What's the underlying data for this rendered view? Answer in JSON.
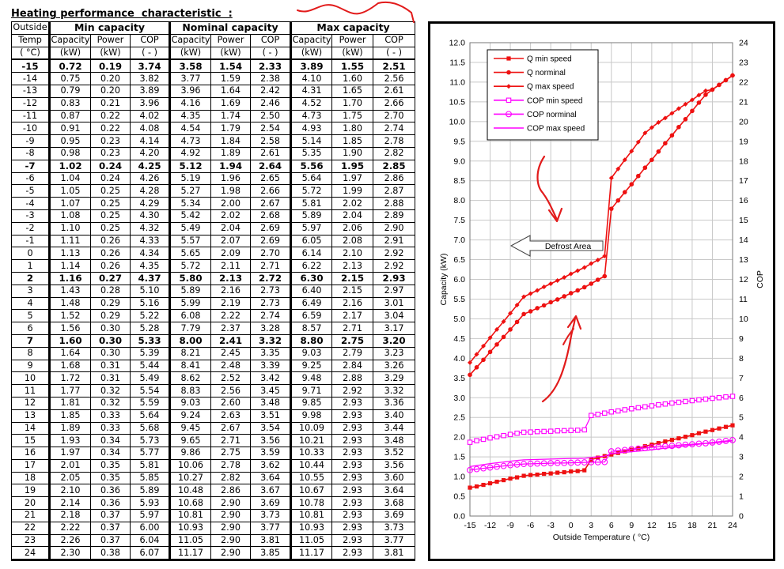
{
  "title": "Heating performance  characteristic  :",
  "table": {
    "corner": [
      "Outside",
      "Temp",
      "( °C)"
    ],
    "groups": [
      "Min capacity",
      "Nominal capacity",
      "Max capacity"
    ],
    "subheaders": [
      "Capacity",
      "Power",
      "COP"
    ],
    "units": [
      "(kW)",
      "(kW)",
      "( - )"
    ],
    "bold_temps": [
      "-15",
      "-7",
      "2",
      "7"
    ],
    "rows": [
      [
        "-15",
        "0.72",
        "0.19",
        "3.74",
        "3.58",
        "1.54",
        "2.33",
        "3.89",
        "1.55",
        "2.51"
      ],
      [
        "-14",
        "0.75",
        "0.20",
        "3.82",
        "3.77",
        "1.59",
        "2.38",
        "4.10",
        "1.60",
        "2.56"
      ],
      [
        "-13",
        "0.79",
        "0.20",
        "3.89",
        "3.96",
        "1.64",
        "2.42",
        "4.31",
        "1.65",
        "2.61"
      ],
      [
        "-12",
        "0.83",
        "0.21",
        "3.96",
        "4.16",
        "1.69",
        "2.46",
        "4.52",
        "1.70",
        "2.66"
      ],
      [
        "-11",
        "0.87",
        "0.22",
        "4.02",
        "4.35",
        "1.74",
        "2.50",
        "4.73",
        "1.75",
        "2.70"
      ],
      [
        "-10",
        "0.91",
        "0.22",
        "4.08",
        "4.54",
        "1.79",
        "2.54",
        "4.93",
        "1.80",
        "2.74"
      ],
      [
        "-9",
        "0.95",
        "0.23",
        "4.14",
        "4.73",
        "1.84",
        "2.58",
        "5.14",
        "1.85",
        "2.78"
      ],
      [
        "-8",
        "0.98",
        "0.23",
        "4.20",
        "4.92",
        "1.89",
        "2.61",
        "5.35",
        "1.90",
        "2.82"
      ],
      [
        "-7",
        "1.02",
        "0.24",
        "4.25",
        "5.12",
        "1.94",
        "2.64",
        "5.56",
        "1.95",
        "2.85"
      ],
      [
        "-6",
        "1.04",
        "0.24",
        "4.26",
        "5.19",
        "1.96",
        "2.65",
        "5.64",
        "1.97",
        "2.86"
      ],
      [
        "-5",
        "1.05",
        "0.25",
        "4.28",
        "5.27",
        "1.98",
        "2.66",
        "5.72",
        "1.99",
        "2.87"
      ],
      [
        "-4",
        "1.07",
        "0.25",
        "4.29",
        "5.34",
        "2.00",
        "2.67",
        "5.81",
        "2.02",
        "2.88"
      ],
      [
        "-3",
        "1.08",
        "0.25",
        "4.30",
        "5.42",
        "2.02",
        "2.68",
        "5.89",
        "2.04",
        "2.89"
      ],
      [
        "-2",
        "1.10",
        "0.25",
        "4.32",
        "5.49",
        "2.04",
        "2.69",
        "5.97",
        "2.06",
        "2.90"
      ],
      [
        "-1",
        "1.11",
        "0.26",
        "4.33",
        "5.57",
        "2.07",
        "2.69",
        "6.05",
        "2.08",
        "2.91"
      ],
      [
        "0",
        "1.13",
        "0.26",
        "4.34",
        "5.65",
        "2.09",
        "2.70",
        "6.14",
        "2.10",
        "2.92"
      ],
      [
        "1",
        "1.14",
        "0.26",
        "4.35",
        "5.72",
        "2.11",
        "2.71",
        "6.22",
        "2.13",
        "2.92"
      ],
      [
        "2",
        "1.16",
        "0.27",
        "4.37",
        "5.80",
        "2.13",
        "2.72",
        "6.30",
        "2.15",
        "2.93"
      ],
      [
        "3",
        "1.43",
        "0.28",
        "5.10",
        "5.89",
        "2.16",
        "2.73",
        "6.40",
        "2.15",
        "2.97"
      ],
      [
        "4",
        "1.48",
        "0.29",
        "5.16",
        "5.99",
        "2.19",
        "2.73",
        "6.49",
        "2.16",
        "3.01"
      ],
      [
        "5",
        "1.52",
        "0.29",
        "5.22",
        "6.08",
        "2.22",
        "2.74",
        "6.59",
        "2.17",
        "3.04"
      ],
      [
        "6",
        "1.56",
        "0.30",
        "5.28",
        "7.79",
        "2.37",
        "3.28",
        "8.57",
        "2.71",
        "3.17"
      ],
      [
        "7",
        "1.60",
        "0.30",
        "5.33",
        "8.00",
        "2.41",
        "3.32",
        "8.80",
        "2.75",
        "3.20"
      ],
      [
        "8",
        "1.64",
        "0.30",
        "5.39",
        "8.21",
        "2.45",
        "3.35",
        "9.03",
        "2.79",
        "3.23"
      ],
      [
        "9",
        "1.68",
        "0.31",
        "5.44",
        "8.41",
        "2.48",
        "3.39",
        "9.25",
        "2.84",
        "3.26"
      ],
      [
        "10",
        "1.72",
        "0.31",
        "5.49",
        "8.62",
        "2.52",
        "3.42",
        "9.48",
        "2.88",
        "3.29"
      ],
      [
        "11",
        "1.77",
        "0.32",
        "5.54",
        "8.83",
        "2.56",
        "3.45",
        "9.71",
        "2.92",
        "3.32"
      ],
      [
        "12",
        "1.81",
        "0.32",
        "5.59",
        "9.03",
        "2.60",
        "3.48",
        "9.85",
        "2.93",
        "3.36"
      ],
      [
        "13",
        "1.85",
        "0.33",
        "5.64",
        "9.24",
        "2.63",
        "3.51",
        "9.98",
        "2.93",
        "3.40"
      ],
      [
        "14",
        "1.89",
        "0.33",
        "5.68",
        "9.45",
        "2.67",
        "3.54",
        "10.09",
        "2.93",
        "3.44"
      ],
      [
        "15",
        "1.93",
        "0.34",
        "5.73",
        "9.65",
        "2.71",
        "3.56",
        "10.21",
        "2.93",
        "3.48"
      ],
      [
        "16",
        "1.97",
        "0.34",
        "5.77",
        "9.86",
        "2.75",
        "3.59",
        "10.33",
        "2.93",
        "3.52"
      ],
      [
        "17",
        "2.01",
        "0.35",
        "5.81",
        "10.06",
        "2.78",
        "3.62",
        "10.44",
        "2.93",
        "3.56"
      ],
      [
        "18",
        "2.05",
        "0.35",
        "5.85",
        "10.27",
        "2.82",
        "3.64",
        "10.55",
        "2.93",
        "3.60"
      ],
      [
        "19",
        "2.10",
        "0.36",
        "5.89",
        "10.48",
        "2.86",
        "3.67",
        "10.67",
        "2.93",
        "3.64"
      ],
      [
        "20",
        "2.14",
        "0.36",
        "5.93",
        "10.68",
        "2.90",
        "3.69",
        "10.78",
        "2.93",
        "3.68"
      ],
      [
        "21",
        "2.18",
        "0.37",
        "5.97",
        "10.81",
        "2.90",
        "3.73",
        "10.81",
        "2.93",
        "3.69"
      ],
      [
        "22",
        "2.22",
        "0.37",
        "6.00",
        "10.93",
        "2.90",
        "3.77",
        "10.93",
        "2.93",
        "3.73"
      ],
      [
        "23",
        "2.26",
        "0.37",
        "6.04",
        "11.05",
        "2.90",
        "3.81",
        "11.05",
        "2.93",
        "3.77"
      ],
      [
        "24",
        "2.30",
        "0.38",
        "6.07",
        "11.17",
        "2.90",
        "3.85",
        "11.17",
        "2.93",
        "3.81"
      ]
    ]
  },
  "chart_data": {
    "type": "line",
    "xlabel": "Outside Temperature ( °C)",
    "ylabel": "Capacity (kW)",
    "y2label": "COP",
    "xlim": [
      -15,
      24
    ],
    "xticks": [
      -15,
      -12,
      -9,
      -6,
      -3,
      0,
      3,
      6,
      9,
      12,
      15,
      18,
      21,
      24
    ],
    "ylim": [
      0,
      12
    ],
    "ystep": 0.5,
    "y2lim": [
      0,
      24
    ],
    "y2step": 1,
    "grid": true,
    "legend_position": "top-left",
    "annotation": "Defrost Area",
    "series_color": "#ee1111",
    "cop_color": "#ff00ff",
    "series": [
      {
        "name": "Q min speed",
        "column": 1,
        "axis": "left",
        "marker": "square"
      },
      {
        "name": "Q norminal",
        "column": 4,
        "axis": "left",
        "marker": "circle"
      },
      {
        "name": "Q max speed",
        "column": 7,
        "axis": "left",
        "marker": "diamond"
      },
      {
        "name": "COP min speed",
        "column": 3,
        "axis": "right",
        "marker": "square-open"
      },
      {
        "name": "COP norminal",
        "column": 6,
        "axis": "right",
        "marker": "circle-open"
      },
      {
        "name": "COP max speed",
        "column": 9,
        "axis": "right",
        "marker": "line"
      }
    ],
    "x_source_column": 0
  }
}
